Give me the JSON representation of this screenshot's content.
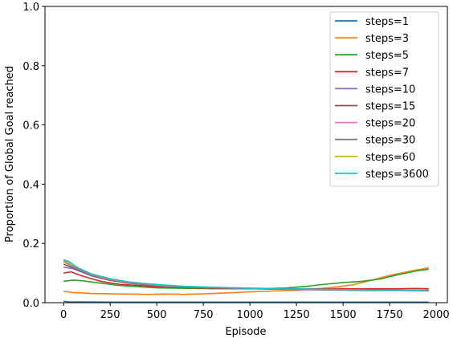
{
  "chart_data": {
    "type": "line",
    "title": "",
    "xlabel": "Episode",
    "ylabel": "Proportion of Global Goal reached",
    "xlim": [
      -100,
      2060
    ],
    "ylim": [
      0,
      1.0
    ],
    "xticks": [
      0,
      250,
      500,
      750,
      1000,
      1250,
      1500,
      1750,
      2000
    ],
    "yticks": [
      0.0,
      0.2,
      0.4,
      0.6,
      0.8,
      1.0
    ],
    "grid": false,
    "legend_position": "top-right",
    "series": [
      {
        "name": "steps=1",
        "color": "#1f77b4",
        "points": [
          [
            0,
            0.005
          ],
          [
            25,
            0.003
          ],
          [
            250,
            0.002
          ],
          [
            500,
            0.002
          ],
          [
            1000,
            0.002
          ],
          [
            1500,
            0.002
          ],
          [
            1960,
            0.002
          ]
        ]
      },
      {
        "name": "steps=3",
        "color": "#ff7f0e",
        "points": [
          [
            0,
            0.038
          ],
          [
            50,
            0.034
          ],
          [
            150,
            0.031
          ],
          [
            250,
            0.03
          ],
          [
            350,
            0.029
          ],
          [
            450,
            0.028
          ],
          [
            550,
            0.029
          ],
          [
            650,
            0.028
          ],
          [
            750,
            0.03
          ],
          [
            850,
            0.032
          ],
          [
            950,
            0.035
          ],
          [
            1050,
            0.038
          ],
          [
            1150,
            0.04
          ],
          [
            1250,
            0.042
          ],
          [
            1350,
            0.046
          ],
          [
            1450,
            0.052
          ],
          [
            1550,
            0.06
          ],
          [
            1650,
            0.075
          ],
          [
            1750,
            0.092
          ],
          [
            1850,
            0.105
          ],
          [
            1960,
            0.118
          ]
        ]
      },
      {
        "name": "steps=5",
        "color": "#2ca02c",
        "points": [
          [
            0,
            0.072
          ],
          [
            50,
            0.076
          ],
          [
            100,
            0.074
          ],
          [
            200,
            0.066
          ],
          [
            300,
            0.058
          ],
          [
            400,
            0.054
          ],
          [
            500,
            0.05
          ],
          [
            600,
            0.049
          ],
          [
            700,
            0.048
          ],
          [
            800,
            0.047
          ],
          [
            900,
            0.047
          ],
          [
            1000,
            0.047
          ],
          [
            1100,
            0.048
          ],
          [
            1200,
            0.05
          ],
          [
            1300,
            0.055
          ],
          [
            1400,
            0.062
          ],
          [
            1500,
            0.068
          ],
          [
            1600,
            0.072
          ],
          [
            1700,
            0.08
          ],
          [
            1800,
            0.095
          ],
          [
            1900,
            0.108
          ],
          [
            1960,
            0.113
          ]
        ]
      },
      {
        "name": "steps=7",
        "color": "#d62728",
        "points": [
          [
            0,
            0.1
          ],
          [
            40,
            0.104
          ],
          [
            100,
            0.09
          ],
          [
            200,
            0.072
          ],
          [
            300,
            0.062
          ],
          [
            400,
            0.058
          ],
          [
            500,
            0.054
          ],
          [
            600,
            0.052
          ],
          [
            700,
            0.05
          ],
          [
            800,
            0.049
          ],
          [
            900,
            0.048
          ],
          [
            1000,
            0.048
          ],
          [
            1100,
            0.048
          ],
          [
            1200,
            0.047
          ],
          [
            1300,
            0.047
          ],
          [
            1400,
            0.047
          ],
          [
            1500,
            0.047
          ],
          [
            1600,
            0.047
          ],
          [
            1700,
            0.047
          ],
          [
            1800,
            0.047
          ],
          [
            1900,
            0.048
          ],
          [
            1960,
            0.047
          ]
        ]
      },
      {
        "name": "steps=10",
        "color": "#9467bd",
        "points": [
          [
            0,
            0.12
          ],
          [
            50,
            0.115
          ],
          [
            150,
            0.09
          ],
          [
            250,
            0.075
          ],
          [
            350,
            0.066
          ],
          [
            450,
            0.06
          ],
          [
            550,
            0.055
          ],
          [
            650,
            0.052
          ],
          [
            800,
            0.05
          ],
          [
            1000,
            0.048
          ],
          [
            1200,
            0.046
          ],
          [
            1400,
            0.044
          ],
          [
            1600,
            0.042
          ],
          [
            1800,
            0.042
          ],
          [
            1960,
            0.041
          ]
        ]
      },
      {
        "name": "steps=15",
        "color": "#8c564b",
        "points": [
          [
            0,
            0.13
          ],
          [
            50,
            0.118
          ],
          [
            150,
            0.092
          ],
          [
            250,
            0.076
          ],
          [
            350,
            0.066
          ],
          [
            450,
            0.061
          ],
          [
            550,
            0.056
          ],
          [
            650,
            0.053
          ],
          [
            800,
            0.05
          ],
          [
            1000,
            0.047
          ],
          [
            1200,
            0.045
          ],
          [
            1400,
            0.043
          ],
          [
            1600,
            0.041
          ],
          [
            1800,
            0.041
          ],
          [
            1960,
            0.04
          ]
        ]
      },
      {
        "name": "steps=20",
        "color": "#e377c2",
        "points": [
          [
            0,
            0.138
          ],
          [
            50,
            0.122
          ],
          [
            150,
            0.094
          ],
          [
            250,
            0.078
          ],
          [
            350,
            0.068
          ],
          [
            450,
            0.062
          ],
          [
            550,
            0.057
          ],
          [
            650,
            0.054
          ],
          [
            800,
            0.051
          ],
          [
            1000,
            0.048
          ],
          [
            1200,
            0.046
          ],
          [
            1400,
            0.044
          ],
          [
            1600,
            0.042
          ],
          [
            1800,
            0.042
          ],
          [
            1960,
            0.041
          ]
        ]
      },
      {
        "name": "steps=30",
        "color": "#7f7f7f",
        "points": [
          [
            0,
            0.14
          ],
          [
            50,
            0.124
          ],
          [
            150,
            0.095
          ],
          [
            250,
            0.079
          ],
          [
            350,
            0.068
          ],
          [
            450,
            0.063
          ],
          [
            550,
            0.058
          ],
          [
            650,
            0.054
          ],
          [
            800,
            0.051
          ],
          [
            1000,
            0.048
          ],
          [
            1200,
            0.046
          ],
          [
            1400,
            0.044
          ],
          [
            1600,
            0.043
          ],
          [
            1800,
            0.042
          ],
          [
            1960,
            0.041
          ]
        ]
      },
      {
        "name": "steps=60",
        "color": "#bcbd22",
        "points": [
          [
            0,
            0.142
          ],
          [
            50,
            0.126
          ],
          [
            150,
            0.096
          ],
          [
            250,
            0.08
          ],
          [
            350,
            0.069
          ],
          [
            450,
            0.064
          ],
          [
            550,
            0.058
          ],
          [
            650,
            0.055
          ],
          [
            800,
            0.052
          ],
          [
            1000,
            0.049
          ],
          [
            1200,
            0.047
          ],
          [
            1400,
            0.045
          ],
          [
            1600,
            0.043
          ],
          [
            1800,
            0.042
          ],
          [
            1960,
            0.042
          ]
        ]
      },
      {
        "name": "steps=3600",
        "color": "#17becf",
        "points": [
          [
            0,
            0.145
          ],
          [
            25,
            0.14
          ],
          [
            75,
            0.118
          ],
          [
            150,
            0.097
          ],
          [
            250,
            0.081
          ],
          [
            350,
            0.07
          ],
          [
            450,
            0.064
          ],
          [
            550,
            0.059
          ],
          [
            650,
            0.055
          ],
          [
            800,
            0.052
          ],
          [
            1000,
            0.049
          ],
          [
            1200,
            0.047
          ],
          [
            1400,
            0.045
          ],
          [
            1600,
            0.043
          ],
          [
            1800,
            0.042
          ],
          [
            1960,
            0.042
          ]
        ]
      }
    ]
  }
}
